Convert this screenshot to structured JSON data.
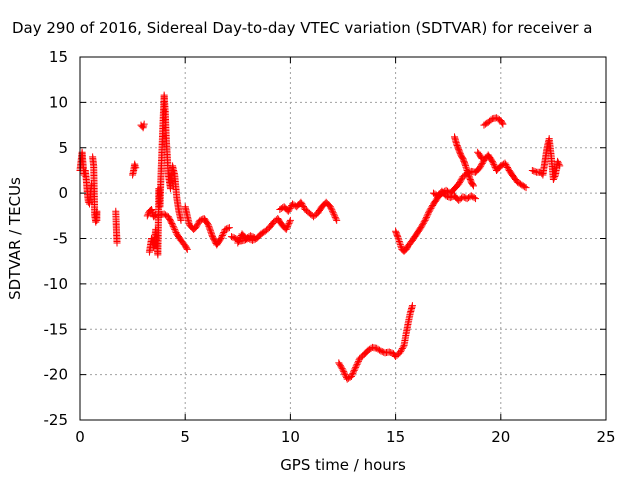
{
  "chart_data": {
    "type": "scatter",
    "title": "Day 290 of 2016, Sidereal Day-to-day VTEC variation (SDTVAR) for receiver a",
    "xlabel": "GPS time / hours",
    "ylabel": "SDTVAR / TECUs",
    "xlim": [
      0,
      25
    ],
    "ylim": [
      -25,
      15
    ],
    "xticks": [
      0,
      5,
      10,
      15,
      20,
      25
    ],
    "yticks": [
      -25,
      -20,
      -15,
      -10,
      -5,
      0,
      5,
      10,
      15
    ],
    "grid": true,
    "marker": "plus",
    "color": "#ff0000",
    "segments": [
      [
        [
          0.0,
          2.5
        ],
        [
          0.05,
          3.5
        ],
        [
          0.1,
          4.5
        ],
        [
          0.15,
          3.0
        ],
        [
          0.2,
          2.0
        ],
        [
          0.25,
          2.5
        ],
        [
          0.3,
          1.5
        ],
        [
          0.35,
          0.0
        ],
        [
          0.4,
          -1.0
        ],
        [
          0.45,
          -1.2
        ],
        [
          0.5,
          0.0
        ],
        [
          0.55,
          1.0
        ]
      ],
      [
        [
          0.6,
          4.0
        ],
        [
          0.65,
          3.0
        ],
        [
          0.7,
          -2.5
        ],
        [
          0.75,
          -3.2
        ],
        [
          0.8,
          -2.0
        ],
        [
          0.8,
          -3.0
        ]
      ],
      [
        [
          1.7,
          -2.0
        ],
        [
          1.72,
          -3.3
        ],
        [
          1.74,
          -4.5
        ],
        [
          1.76,
          -5.5
        ]
      ],
      [
        [
          2.5,
          2.0
        ],
        [
          2.55,
          2.5
        ],
        [
          2.6,
          3.2
        ],
        [
          2.65,
          2.8
        ]
      ],
      [
        [
          2.9,
          7.5
        ],
        [
          3.0,
          7.2
        ],
        [
          3.05,
          7.6
        ]
      ],
      [
        [
          3.2,
          -2.5
        ],
        [
          3.3,
          -2.0
        ],
        [
          3.4,
          -1.8
        ],
        [
          3.5,
          -2.6
        ],
        [
          3.6,
          -2.4
        ],
        [
          3.7,
          -2.5
        ],
        [
          3.8,
          -2.4
        ],
        [
          4.0,
          -2.3
        ],
        [
          4.2,
          -2.6
        ],
        [
          4.4,
          -3.5
        ],
        [
          4.6,
          -4.5
        ],
        [
          4.8,
          -5.2
        ],
        [
          5.0,
          -5.8
        ],
        [
          5.1,
          -6.2
        ]
      ],
      [
        [
          3.3,
          -6.5
        ],
        [
          3.4,
          -5.0
        ],
        [
          3.5,
          -6.0
        ],
        [
          3.6,
          -4.0
        ],
        [
          3.7,
          -6.8
        ],
        [
          3.75,
          0.5
        ],
        [
          3.8,
          -1.5
        ],
        [
          3.85,
          2.0
        ],
        [
          3.9,
          5.0
        ],
        [
          3.95,
          8.0
        ],
        [
          4.0,
          10.8
        ],
        [
          4.05,
          9.0
        ],
        [
          4.1,
          6.0
        ],
        [
          4.2,
          2.0
        ],
        [
          4.3,
          0.5
        ],
        [
          4.4,
          3.0
        ],
        [
          4.5,
          2.0
        ],
        [
          4.6,
          -0.5
        ],
        [
          4.7,
          -2.0
        ],
        [
          4.8,
          -3.0
        ]
      ],
      [
        [
          5.0,
          -1.5
        ],
        [
          5.2,
          -3.5
        ],
        [
          5.4,
          -4.0
        ],
        [
          5.5,
          -3.8
        ],
        [
          5.7,
          -3.0
        ],
        [
          5.9,
          -2.8
        ],
        [
          6.1,
          -3.5
        ],
        [
          6.3,
          -4.8
        ],
        [
          6.5,
          -5.7
        ],
        [
          6.7,
          -5.0
        ],
        [
          6.9,
          -4.0
        ],
        [
          7.1,
          -3.8
        ]
      ],
      [
        [
          7.2,
          -4.8
        ],
        [
          7.4,
          -5.0
        ],
        [
          7.6,
          -5.3
        ],
        [
          7.8,
          -5.2
        ],
        [
          8.0,
          -5.0
        ],
        [
          8.2,
          -5.2
        ],
        [
          8.4,
          -5.0
        ],
        [
          8.6,
          -4.5
        ],
        [
          8.8,
          -4.2
        ],
        [
          9.0,
          -3.8
        ],
        [
          9.2,
          -3.2
        ],
        [
          9.4,
          -2.8
        ],
        [
          9.6,
          -3.5
        ],
        [
          9.8,
          -4.0
        ],
        [
          10.0,
          -3.0
        ]
      ],
      [
        [
          7.5,
          -5.5
        ],
        [
          7.7,
          -4.5
        ],
        [
          7.9,
          -5.0
        ],
        [
          8.1,
          -4.7
        ],
        [
          8.3,
          -4.9
        ]
      ],
      [
        [
          9.5,
          -1.8
        ],
        [
          9.7,
          -1.5
        ],
        [
          9.9,
          -2.0
        ],
        [
          10.1,
          -1.2
        ],
        [
          10.3,
          -1.5
        ],
        [
          10.5,
          -1.0
        ],
        [
          10.7,
          -1.8
        ],
        [
          10.9,
          -2.2
        ],
        [
          11.1,
          -2.6
        ],
        [
          11.3,
          -2.2
        ],
        [
          11.5,
          -1.5
        ],
        [
          11.7,
          -1.0
        ],
        [
          11.9,
          -1.5
        ],
        [
          12.1,
          -2.5
        ],
        [
          12.2,
          -3.0
        ]
      ],
      [
        [
          12.3,
          -18.7
        ],
        [
          12.5,
          -19.5
        ],
        [
          12.7,
          -20.5
        ],
        [
          12.9,
          -20.2
        ],
        [
          13.1,
          -19.2
        ],
        [
          13.3,
          -18.2
        ],
        [
          13.5,
          -17.8
        ],
        [
          13.7,
          -17.3
        ],
        [
          13.9,
          -17.0
        ],
        [
          14.1,
          -17.1
        ],
        [
          14.3,
          -17.4
        ],
        [
          14.5,
          -17.6
        ],
        [
          14.7,
          -17.5
        ],
        [
          14.9,
          -17.7
        ],
        [
          15.0,
          -18.0
        ],
        [
          15.2,
          -17.6
        ],
        [
          15.4,
          -16.8
        ],
        [
          15.5,
          -15.5
        ],
        [
          15.6,
          -14.3
        ],
        [
          15.7,
          -13.2
        ],
        [
          15.8,
          -12.4
        ]
      ],
      [
        [
          15.0,
          -4.2
        ],
        [
          15.1,
          -4.8
        ],
        [
          15.2,
          -5.5
        ],
        [
          15.3,
          -6.2
        ],
        [
          15.4,
          -6.4
        ],
        [
          15.5,
          -6.2
        ],
        [
          15.6,
          -5.8
        ],
        [
          15.8,
          -5.2
        ],
        [
          16.0,
          -4.5
        ],
        [
          16.2,
          -3.8
        ],
        [
          16.4,
          -3.0
        ],
        [
          16.6,
          -2.0
        ],
        [
          16.8,
          -1.2
        ],
        [
          17.0,
          -0.5
        ],
        [
          17.2,
          0.0
        ],
        [
          17.4,
          0.3
        ],
        [
          17.6,
          0.0
        ],
        [
          17.8,
          0.5
        ],
        [
          18.0,
          1.0
        ],
        [
          18.2,
          1.8
        ],
        [
          18.4,
          2.2
        ],
        [
          18.6,
          2.4
        ],
        [
          18.8,
          2.3
        ],
        [
          19.0,
          2.8
        ],
        [
          19.2,
          3.6
        ],
        [
          19.4,
          4.2
        ],
        [
          19.6,
          3.5
        ],
        [
          19.8,
          2.5
        ]
      ],
      [
        [
          16.8,
          0.0
        ],
        [
          17.0,
          -0.3
        ],
        [
          17.2,
          0.2
        ],
        [
          17.4,
          -0.3
        ],
        [
          17.6,
          -0.5
        ],
        [
          17.8,
          -0.3
        ],
        [
          18.0,
          -0.8
        ],
        [
          18.2,
          -0.4
        ],
        [
          18.4,
          -0.6
        ],
        [
          18.6,
          -0.3
        ],
        [
          18.8,
          -0.6
        ]
      ],
      [
        [
          17.8,
          6.2
        ],
        [
          17.9,
          5.4
        ],
        [
          18.0,
          4.8
        ],
        [
          18.1,
          4.2
        ],
        [
          18.2,
          3.8
        ],
        [
          18.3,
          3.2
        ],
        [
          18.4,
          2.5
        ],
        [
          18.5,
          1.8
        ],
        [
          18.6,
          1.2
        ],
        [
          18.7,
          0.8
        ]
      ],
      [
        [
          18.9,
          4.5
        ],
        [
          19.0,
          4.2
        ],
        [
          19.1,
          3.8
        ]
      ],
      [
        [
          19.2,
          7.5
        ],
        [
          19.4,
          7.8
        ],
        [
          19.6,
          8.2
        ],
        [
          19.8,
          8.3
        ],
        [
          20.0,
          8.0
        ],
        [
          20.1,
          7.6
        ]
      ],
      [
        [
          19.8,
          2.5
        ],
        [
          20.0,
          3.0
        ],
        [
          20.2,
          3.3
        ],
        [
          20.4,
          2.5
        ],
        [
          20.6,
          1.8
        ],
        [
          20.8,
          1.2
        ],
        [
          21.0,
          0.9
        ],
        [
          21.2,
          0.6
        ]
      ],
      [
        [
          21.5,
          2.5
        ],
        [
          21.7,
          2.3
        ],
        [
          21.9,
          2.3
        ],
        [
          22.0,
          2.0
        ],
        [
          22.1,
          3.5
        ],
        [
          22.2,
          5.0
        ],
        [
          22.3,
          6.0
        ],
        [
          22.4,
          4.0
        ],
        [
          22.5,
          1.5
        ],
        [
          22.6,
          2.0
        ],
        [
          22.7,
          3.5
        ],
        [
          22.8,
          3.0
        ]
      ]
    ]
  }
}
